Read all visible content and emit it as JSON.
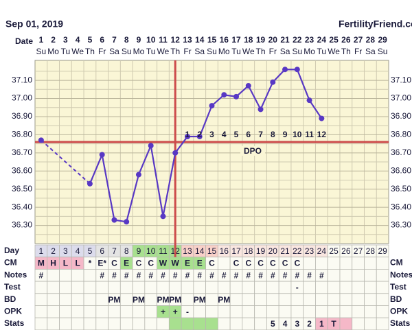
{
  "header": {
    "date": "Sep 01, 2019",
    "site": "FertilityFriend.com"
  },
  "chart_data": {
    "type": "line",
    "date_label": "Date",
    "categories": [
      1,
      2,
      3,
      4,
      5,
      6,
      7,
      8,
      9,
      10,
      11,
      12,
      13,
      14,
      15,
      16,
      17,
      18,
      19,
      20,
      21,
      22,
      23,
      24,
      25,
      26,
      27,
      28,
      29
    ],
    "weekdays": [
      "Su",
      "Mo",
      "Tu",
      "We",
      "Th",
      "Fr",
      "Sa",
      "Su",
      "Mo",
      "Tu",
      "We",
      "Th",
      "Fr",
      "Sa",
      "Su",
      "Mo",
      "Tu",
      "We",
      "Th",
      "Fr",
      "Sa",
      "Su",
      "Mo",
      "Tu",
      "We",
      "Th",
      "Fr",
      "Sa",
      "Su"
    ],
    "values": [
      36.77,
      null,
      null,
      null,
      36.53,
      36.69,
      36.33,
      36.32,
      36.58,
      36.74,
      36.35,
      36.7,
      36.79,
      36.79,
      36.96,
      37.02,
      37.01,
      37.07,
      36.94,
      37.09,
      37.16,
      37.16,
      36.99,
      36.89,
      null,
      null,
      null,
      null,
      null
    ],
    "color": "#5838c4",
    "gap_style": "dashed",
    "ylim": [
      36.2,
      37.21
    ],
    "yticks": [
      {
        "value": 36.3,
        "label": "36.30"
      },
      {
        "value": 36.4,
        "label": "36.40"
      },
      {
        "value": 36.5,
        "label": "36.50"
      },
      {
        "value": 36.6,
        "label": "36.60"
      },
      {
        "value": 36.7,
        "label": "36.70"
      },
      {
        "value": 36.8,
        "label": "36.80"
      },
      {
        "value": 36.9,
        "label": "36.90"
      },
      {
        "value": 37.0,
        "label": "37.00"
      },
      {
        "value": 37.1,
        "label": "37.10"
      }
    ],
    "minor_yticks": [
      36.25,
      36.35,
      36.45,
      36.55,
      36.65,
      36.75,
      36.85,
      36.95,
      37.05,
      37.15
    ],
    "grid": true,
    "coverline": 36.76,
    "ovulation_day": 12,
    "marker_color": "#cc4b4b",
    "dpo_label": "DPO",
    "dpo": [
      null,
      null,
      null,
      null,
      null,
      null,
      null,
      null,
      null,
      null,
      null,
      null,
      1,
      2,
      3,
      4,
      5,
      6,
      7,
      8,
      9,
      10,
      11,
      12,
      null,
      null,
      null,
      null,
      null
    ]
  },
  "table": {
    "day_label": "Day",
    "day_colors": [
      "#dcdcec",
      "#dcdcec",
      "#dcdcec",
      "#dcdcec",
      "#dcdcec",
      "#e4e4e4",
      "#e4e4e4",
      "#e4e4e4",
      "#a8e08f",
      "#a8e08f",
      "#a8e08f",
      "#a8e08f",
      "#f8d0c8",
      "#f8d0c8",
      "#f8d0c8",
      "#f9e6e0",
      "#f9e6e0",
      "#f9e6e0",
      "#f9e6e0",
      "#f9e6e0",
      "#f9e6e0",
      "#f9e6e0",
      "#f9e6e0",
      "#f9e6e0",
      null,
      null,
      null,
      null,
      null
    ],
    "rows": [
      {
        "label": "CM",
        "cells": [
          "M",
          "H",
          "L",
          "L",
          "*",
          "E*",
          "C",
          "E",
          "C",
          "C",
          "W",
          "W",
          "E",
          "E",
          "C",
          null,
          "C",
          "C",
          "C",
          "C",
          "C",
          "C",
          null,
          null,
          null,
          null,
          null,
          null,
          null
        ],
        "colors": [
          "#f5b8c8",
          "#f5b8c8",
          "#f5b8c8",
          "#f5b8c8",
          null,
          null,
          null,
          "#a8e08f",
          null,
          null,
          "#a8e08f",
          "#a8e08f",
          "#a8e08f",
          "#a8e08f",
          null,
          null,
          null,
          null,
          null,
          null,
          null,
          null,
          null,
          null,
          null,
          null,
          null,
          null,
          null
        ]
      },
      {
        "label": "Notes",
        "cells": [
          "#",
          null,
          null,
          null,
          null,
          "#",
          "#",
          "#",
          "#",
          "#",
          "#",
          "#",
          "#",
          "#",
          "#",
          "#",
          "#",
          "#",
          "#",
          "#",
          "#",
          "#",
          "#",
          "#",
          null,
          null,
          null,
          null,
          null
        ],
        "colors": []
      },
      {
        "label": "Test",
        "cells": [
          null,
          null,
          null,
          null,
          null,
          null,
          null,
          null,
          null,
          null,
          null,
          null,
          null,
          null,
          null,
          null,
          null,
          null,
          null,
          null,
          null,
          "-",
          null,
          null,
          null,
          null,
          null,
          null,
          null
        ],
        "colors": []
      },
      {
        "label": "BD",
        "cells": [
          null,
          null,
          null,
          null,
          null,
          null,
          "PM",
          null,
          "PM",
          null,
          "PM",
          "PM",
          null,
          "PM",
          null,
          "PM",
          null,
          null,
          null,
          null,
          null,
          null,
          null,
          null,
          null,
          null,
          null,
          null,
          null
        ],
        "colors": []
      },
      {
        "label": "OPK",
        "cells": [
          null,
          null,
          null,
          null,
          null,
          null,
          null,
          null,
          null,
          null,
          "+",
          "+",
          "-",
          null,
          null,
          null,
          null,
          null,
          null,
          null,
          null,
          null,
          null,
          null,
          null,
          null,
          null,
          null,
          null
        ],
        "colors": [
          null,
          null,
          null,
          null,
          null,
          null,
          null,
          null,
          null,
          null,
          "#a8e08f",
          "#a8e08f",
          null,
          null,
          null,
          null,
          null,
          null,
          null,
          null,
          null,
          null,
          null,
          null,
          null,
          null,
          null,
          null,
          null
        ]
      },
      {
        "label": "Stats",
        "cells": [
          null,
          null,
          null,
          null,
          null,
          null,
          null,
          null,
          null,
          null,
          null,
          null,
          null,
          null,
          null,
          null,
          null,
          null,
          null,
          "5",
          "4",
          "3",
          "2",
          "1",
          "T",
          null,
          null,
          null,
          null
        ],
        "colors": [
          null,
          null,
          null,
          null,
          null,
          null,
          null,
          null,
          null,
          null,
          null,
          "#a8e08f",
          "#a8e08f",
          "#a8e08f",
          "#a8e08f",
          null,
          null,
          null,
          null,
          null,
          null,
          null,
          null,
          "#f5b8c8",
          "#f5b8c8",
          "#f5b8c8",
          null,
          null,
          null
        ]
      }
    ]
  }
}
